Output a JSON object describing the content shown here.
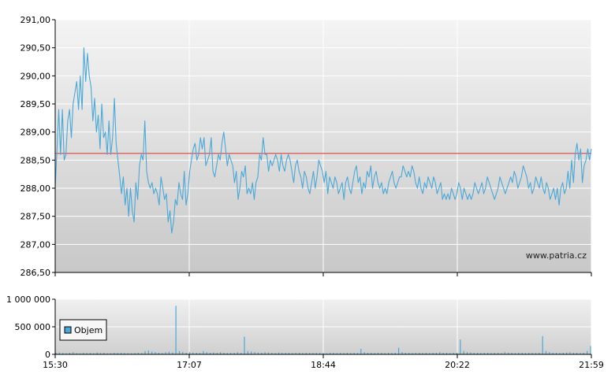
{
  "chart_data": [
    {
      "type": "line",
      "x_ticks": [
        "15:30",
        "17:07",
        "18:44",
        "20:22",
        "21:59"
      ],
      "y_ticks": [
        "291,00",
        "290,50",
        "290,00",
        "289,50",
        "289,00",
        "288,50",
        "288,00",
        "287,50",
        "287,00",
        "286,50"
      ],
      "ylim": [
        286.5,
        291.0
      ],
      "reference_line": 288.62,
      "watermark": "www.patria.cz",
      "grid": true,
      "series": [
        {
          "color": "#4aa8d8",
          "values": [
            288.0,
            288.7,
            289.4,
            288.6,
            289.4,
            288.5,
            288.6,
            289.2,
            289.4,
            288.9,
            289.5,
            289.7,
            289.9,
            289.4,
            290.0,
            289.4,
            290.5,
            289.9,
            290.4,
            290.0,
            289.8,
            289.2,
            289.6,
            289.0,
            289.3,
            288.7,
            289.5,
            288.9,
            289.0,
            288.6,
            289.2,
            288.6,
            288.9,
            289.6,
            288.8,
            288.5,
            288.2,
            287.9,
            288.2,
            287.7,
            288.0,
            287.5,
            288.0,
            287.6,
            287.4,
            288.1,
            287.8,
            288.4,
            288.6,
            288.5,
            289.2,
            288.3,
            288.1,
            288.0,
            288.1,
            287.9,
            288.0,
            287.9,
            287.7,
            288.2,
            288.0,
            287.8,
            287.9,
            287.4,
            287.6,
            287.2,
            287.4,
            287.8,
            287.7,
            288.1,
            287.9,
            287.8,
            288.3,
            287.7,
            287.9,
            288.3,
            288.5,
            288.7,
            288.8,
            288.5,
            288.6,
            288.9,
            288.7,
            288.9,
            288.4,
            288.5,
            288.6,
            288.9,
            288.3,
            288.2,
            288.4,
            288.6,
            288.5,
            288.8,
            289.0,
            288.7,
            288.4,
            288.6,
            288.5,
            288.4,
            288.1,
            288.3,
            287.8,
            288.0,
            288.3,
            288.2,
            288.4,
            287.9,
            288.0,
            287.9,
            288.1,
            287.8,
            288.1,
            288.2,
            288.6,
            288.5,
            288.9,
            288.6,
            288.6,
            288.3,
            288.5,
            288.4,
            288.5,
            288.6,
            288.5,
            288.3,
            288.6,
            288.4,
            288.3,
            288.5,
            288.6,
            288.5,
            288.3,
            288.1,
            288.4,
            288.5,
            288.3,
            288.2,
            288.0,
            288.3,
            288.2,
            288.0,
            287.9,
            288.1,
            288.3,
            288.0,
            288.2,
            288.5,
            288.4,
            288.3,
            288.1,
            288.3,
            287.9,
            288.2,
            288.1,
            288.0,
            288.2,
            288.1,
            287.9,
            288.0,
            288.1,
            287.8,
            288.1,
            288.2,
            288.0,
            287.9,
            288.1,
            288.3,
            288.4,
            288.1,
            288.2,
            287.9,
            288.1,
            288.0,
            288.3,
            288.2,
            288.4,
            288.0,
            288.2,
            288.3,
            288.1,
            288.0,
            288.1,
            287.9,
            288.0,
            287.9,
            288.1,
            288.2,
            288.3,
            288.1,
            288.0,
            288.1,
            288.2,
            288.2,
            288.4,
            288.3,
            288.2,
            288.3,
            288.2,
            288.4,
            288.3,
            288.1,
            288.0,
            288.2,
            288.0,
            287.9,
            288.1,
            288.0,
            288.2,
            288.1,
            288.0,
            288.2,
            288.1,
            287.9,
            288.0,
            288.1,
            287.8,
            287.9,
            287.8,
            287.9,
            287.8,
            288.0,
            287.9,
            287.8,
            287.9,
            288.1,
            288.0,
            287.8,
            288.0,
            287.9,
            287.8,
            287.9,
            287.8,
            287.9,
            288.1,
            288.0,
            287.9,
            288.0,
            288.1,
            287.9,
            288.0,
            288.2,
            288.1,
            288.0,
            287.9,
            287.8,
            287.9,
            288.0,
            288.2,
            288.1,
            288.0,
            287.9,
            288.0,
            288.1,
            288.2,
            288.1,
            288.3,
            288.2,
            288.0,
            288.1,
            288.2,
            288.4,
            288.3,
            288.2,
            288.0,
            288.1,
            287.9,
            288.0,
            288.2,
            288.1,
            288.0,
            288.2,
            288.0,
            287.9,
            288.1,
            288.0,
            287.8,
            287.9,
            288.0,
            287.8,
            288.0,
            287.7,
            288.0,
            288.1,
            287.9,
            288.0,
            288.3,
            288.0,
            288.5,
            288.1,
            288.6,
            288.8,
            288.5,
            288.7,
            288.1,
            288.4,
            288.5,
            288.7,
            288.5,
            288.7
          ]
        }
      ]
    },
    {
      "type": "bar",
      "x_ticks": [
        "15:30",
        "17:07",
        "18:44",
        "20:22",
        "21:59"
      ],
      "y_ticks": [
        "1 000 000",
        "500 000",
        "0"
      ],
      "ylim": [
        0,
        1000000
      ],
      "legend": "Objem",
      "legend_position": "left",
      "series": [
        {
          "name": "Objem",
          "color": "#4aa8d8",
          "values": [
            30000,
            35000,
            25000,
            20000,
            28000,
            40000,
            22000,
            18000,
            30000,
            26000,
            24000,
            20000,
            35000,
            25000,
            30000,
            20000,
            22000,
            28000,
            24000,
            30000,
            26000,
            22000,
            20000,
            25000,
            30000,
            24000,
            60000,
            70000,
            50000,
            40000,
            30000,
            25000,
            40000,
            50000,
            35000,
            880000,
            60000,
            45000,
            30000,
            40000,
            35000,
            30000,
            25000,
            60000,
            40000,
            30000,
            35000,
            28000,
            40000,
            30000,
            25000,
            30000,
            28000,
            40000,
            30000,
            320000,
            60000,
            50000,
            40000,
            35000,
            30000,
            40000,
            35000,
            30000,
            25000,
            35000,
            30000,
            28000,
            30000,
            25000,
            30000,
            28000,
            25000,
            30000,
            26000,
            24000,
            30000,
            28000,
            25000,
            22000,
            30000,
            28000,
            25000,
            30000,
            24000,
            28000,
            25000,
            30000,
            26000,
            100000,
            40000,
            30000,
            28000,
            25000,
            30000,
            28000,
            25000,
            30000,
            26000,
            30000,
            120000,
            40000,
            30000,
            28000,
            25000,
            30000,
            28000,
            26000,
            30000,
            25000,
            30000,
            28000,
            40000,
            30000,
            28000,
            25000,
            30000,
            28000,
            270000,
            60000,
            40000,
            35000,
            30000,
            28000,
            25000,
            30000,
            28000,
            26000,
            30000,
            28000,
            25000,
            40000,
            30000,
            28000,
            25000,
            30000,
            28000,
            26000,
            30000,
            28000,
            25000,
            30000,
            330000,
            60000,
            40000,
            30000,
            28000,
            25000,
            30000,
            35000,
            40000,
            30000,
            28000,
            25000,
            30000,
            60000,
            150000
          ]
        }
      ]
    }
  ]
}
